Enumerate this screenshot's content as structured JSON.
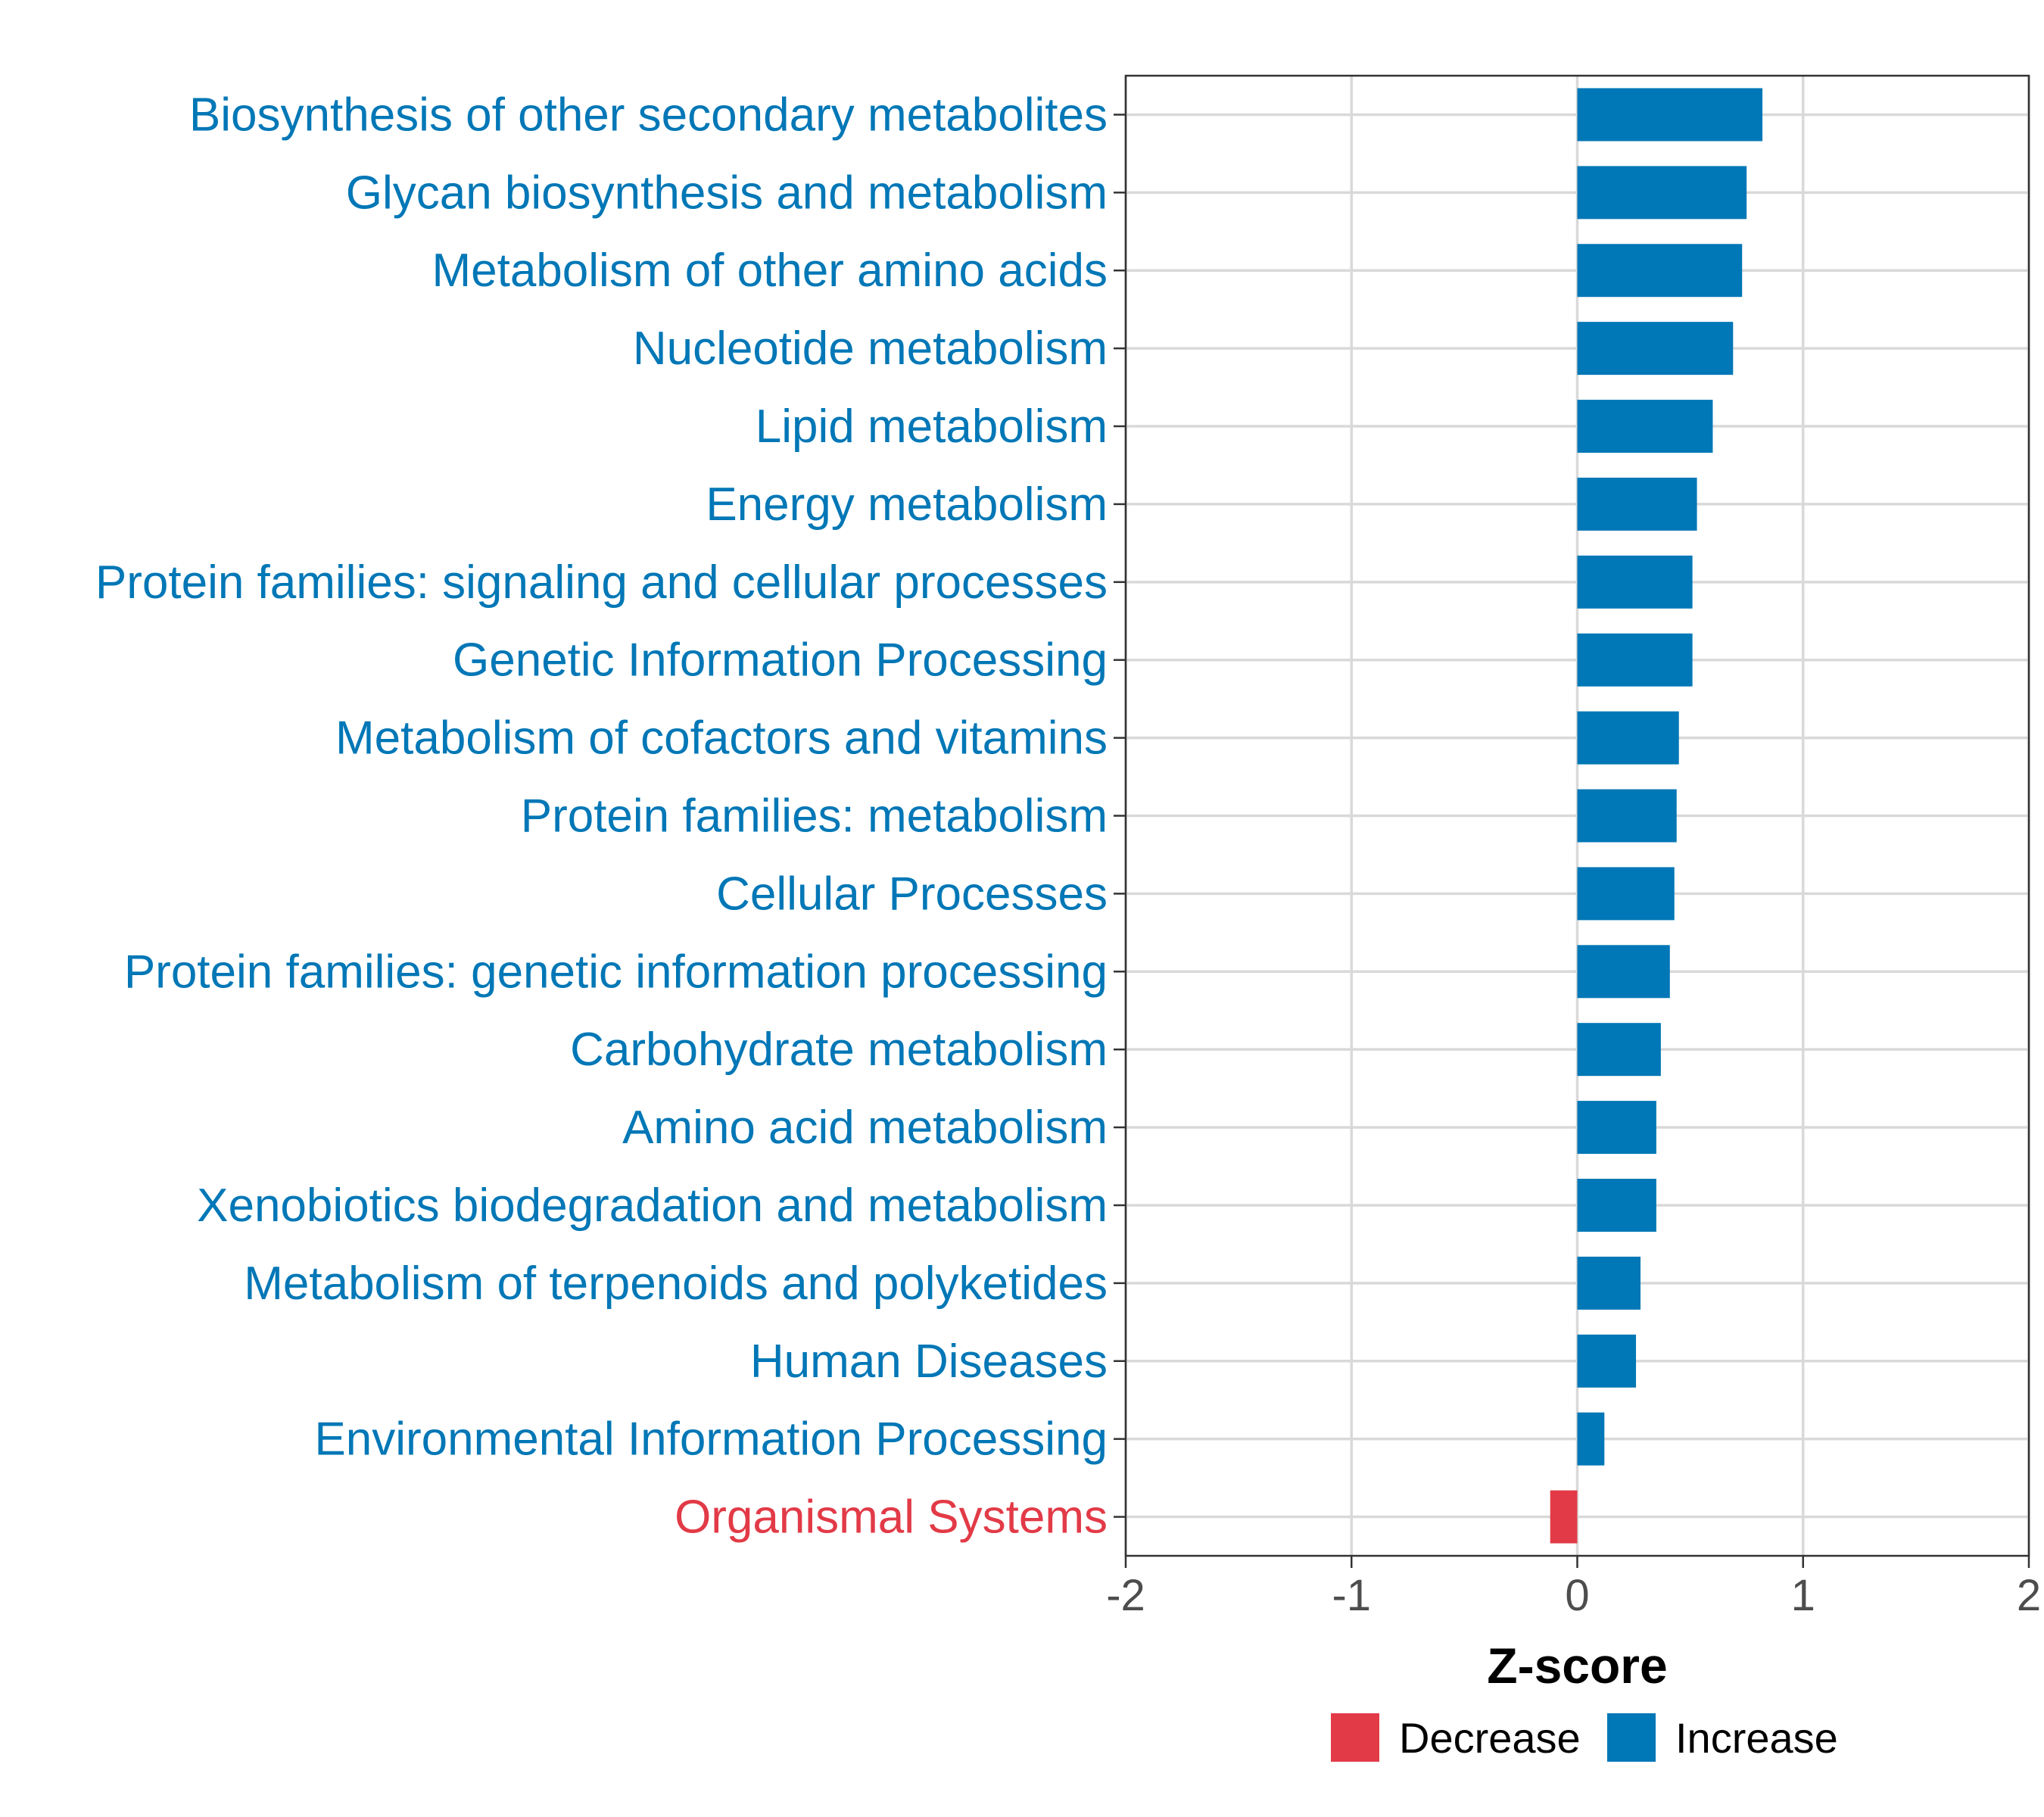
{
  "colors": {
    "increase": "#0077B6",
    "decrease": "#E23A47",
    "grid": "#D9D9D9",
    "axis": "#000000"
  },
  "chart_data": {
    "type": "bar",
    "orientation": "horizontal",
    "title": "",
    "xlabel": "Z-score",
    "ylabel": "",
    "xlim": [
      -2,
      2
    ],
    "xticks": [
      "-2",
      "-1",
      "0",
      "1",
      "2"
    ],
    "grid": true,
    "legend_position": "bottom",
    "legend": [
      {
        "label": "Decrease",
        "color": "#E23A47"
      },
      {
        "label": "Increase",
        "color": "#0077B6"
      }
    ],
    "categories": [
      "Biosynthesis of other secondary metabolites",
      "Glycan biosynthesis and metabolism",
      "Metabolism of other amino acids",
      "Nucleotide metabolism",
      "Lipid metabolism",
      "Energy metabolism",
      "Protein families: signaling and cellular processes",
      "Genetic Information Processing",
      "Metabolism of cofactors and vitamins",
      "Protein families: metabolism",
      "Cellular Processes",
      "Protein families: genetic information processing",
      "Carbohydrate metabolism",
      "Amino acid metabolism",
      "Xenobiotics biodegradation and metabolism",
      "Metabolism of terpenoids and polyketides",
      "Human Diseases",
      "Environmental Information Processing",
      "Organismal Systems"
    ],
    "values": [
      0.82,
      0.75,
      0.73,
      0.69,
      0.6,
      0.53,
      0.51,
      0.51,
      0.45,
      0.44,
      0.43,
      0.41,
      0.37,
      0.35,
      0.35,
      0.28,
      0.26,
      0.12,
      -0.12
    ],
    "direction": [
      "Increase",
      "Increase",
      "Increase",
      "Increase",
      "Increase",
      "Increase",
      "Increase",
      "Increase",
      "Increase",
      "Increase",
      "Increase",
      "Increase",
      "Increase",
      "Increase",
      "Increase",
      "Increase",
      "Increase",
      "Increase",
      "Decrease"
    ]
  }
}
